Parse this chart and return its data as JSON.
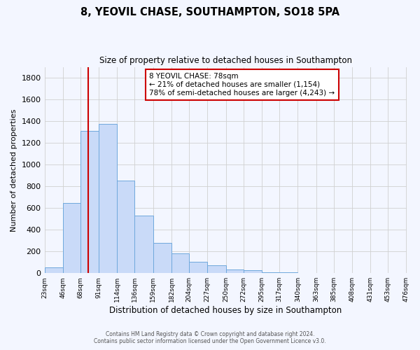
{
  "title": "8, YEOVIL CHASE, SOUTHAMPTON, SO18 5PA",
  "subtitle": "Size of property relative to detached houses in Southampton",
  "xlabel": "Distribution of detached houses by size in Southampton",
  "ylabel": "Number of detached properties",
  "bar_color": "#c9daf8",
  "bar_edge_color": "#6fa8dc",
  "background_color": "#f3f6ff",
  "grid_color": "#d0d0d0",
  "vline_x": 78,
  "vline_color": "#cc0000",
  "annotation_text": "8 YEOVIL CHASE: 78sqm\n← 21% of detached houses are smaller (1,154)\n78% of semi-detached houses are larger (4,243) →",
  "annotation_box_color": "#ffffff",
  "annotation_box_edge": "#cc0000",
  "bin_edges": [
    23,
    46,
    68,
    91,
    114,
    136,
    159,
    182,
    204,
    227,
    250,
    272,
    295,
    317,
    340,
    363,
    385,
    408,
    431,
    453,
    476
  ],
  "bin_values": [
    55,
    645,
    1310,
    1375,
    850,
    530,
    280,
    185,
    105,
    70,
    35,
    25,
    10,
    5,
    2,
    1,
    0,
    0,
    0,
    0
  ],
  "ylim": [
    0,
    1900
  ],
  "yticks": [
    0,
    200,
    400,
    600,
    800,
    1000,
    1200,
    1400,
    1600,
    1800
  ],
  "xtick_labels": [
    "23sqm",
    "46sqm",
    "68sqm",
    "91sqm",
    "114sqm",
    "136sqm",
    "159sqm",
    "182sqm",
    "204sqm",
    "227sqm",
    "250sqm",
    "272sqm",
    "295sqm",
    "317sqm",
    "340sqm",
    "363sqm",
    "385sqm",
    "408sqm",
    "431sqm",
    "453sqm",
    "476sqm"
  ],
  "footer_line1": "Contains HM Land Registry data © Crown copyright and database right 2024.",
  "footer_line2": "Contains public sector information licensed under the Open Government Licence v3.0."
}
